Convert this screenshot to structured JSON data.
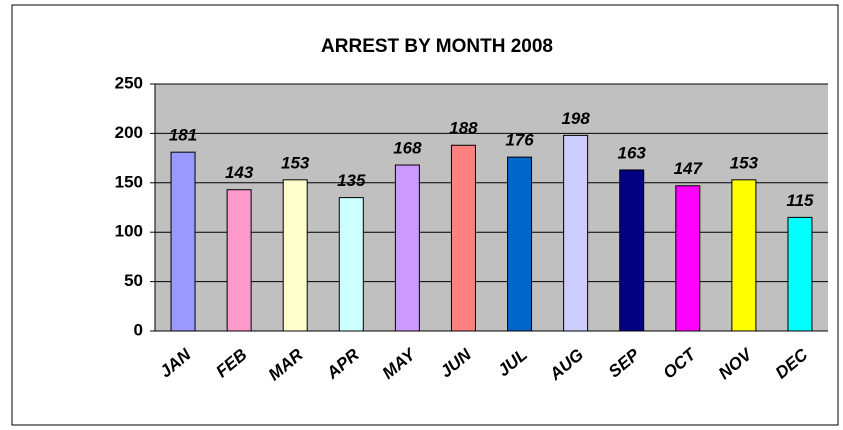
{
  "chart_data": {
    "type": "bar",
    "title": "ARREST BY MONTH 2008",
    "categories": [
      "JAN",
      "FEB",
      "MAR",
      "APR",
      "MAY",
      "JUN",
      "JUL",
      "AUG",
      "SEP",
      "OCT",
      "NOV",
      "DEC"
    ],
    "values": [
      181,
      143,
      153,
      135,
      168,
      188,
      176,
      198,
      163,
      147,
      153,
      115
    ],
    "colors": [
      "#9999ff",
      "#ff99cc",
      "#ffffcc",
      "#ccffff",
      "#cc99ff",
      "#ff8080",
      "#0066cc",
      "#ccccff",
      "#000080",
      "#ff00ff",
      "#ffff00",
      "#00ffff"
    ],
    "ylim": [
      0,
      250
    ],
    "yticks": [
      0,
      50,
      100,
      150,
      200,
      250
    ],
    "grid": true,
    "plot_background": "#c0c0c0"
  }
}
